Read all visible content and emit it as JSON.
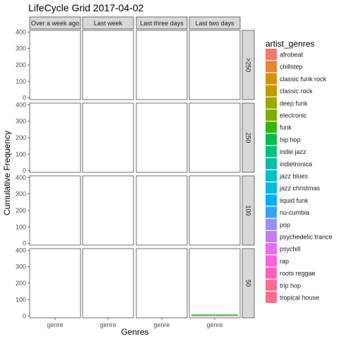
{
  "chart_data": {
    "type": "bar",
    "title": "LifeCycle Grid 2017-04-02",
    "xlabel": "Genres",
    "ylabel": "Cumulative Frequency",
    "x_tick_label": "genre",
    "ylim": [
      -10,
      410
    ],
    "y_ticks": [
      0,
      100,
      200,
      300,
      400
    ],
    "grid": false,
    "column_facets": [
      "Over a week ago",
      "Last week",
      "Last three days",
      "Last two days"
    ],
    "row_facets": [
      ">250",
      "250",
      "100",
      "50"
    ],
    "legend": {
      "title": "artist_genres",
      "placement": "right",
      "entries": [
        {
          "name": "afrobeat",
          "color": "#F8766D"
        },
        {
          "name": "chillstep",
          "color": "#EA8331"
        },
        {
          "name": "classic funk rock",
          "color": "#D89000"
        },
        {
          "name": "classic rock",
          "color": "#C09B00"
        },
        {
          "name": "deep funk",
          "color": "#A3A500"
        },
        {
          "name": "electronic",
          "color": "#7CAE00"
        },
        {
          "name": "funk",
          "color": "#39B600"
        },
        {
          "name": "hip hop",
          "color": "#00BB4E"
        },
        {
          "name": "indie jazz",
          "color": "#00BF7D"
        },
        {
          "name": "indietronica",
          "color": "#00C1A3"
        },
        {
          "name": "jazz blues",
          "color": "#00BFC4"
        },
        {
          "name": "jazz christmas",
          "color": "#00BAE0"
        },
        {
          "name": "liquid funk",
          "color": "#00B0F6"
        },
        {
          "name": "nu-cumbia",
          "color": "#35A2FF"
        },
        {
          "name": "pop",
          "color": "#9590FF"
        },
        {
          "name": "psychedelic trance",
          "color": "#C77CFF"
        },
        {
          "name": "psychill",
          "color": "#E76BF3"
        },
        {
          "name": "rap",
          "color": "#FA62DB"
        },
        {
          "name": "roots reggae",
          "color": "#FF62BC"
        },
        {
          "name": "trip hop",
          "color": "#FF6C90"
        },
        {
          "name": "tropical house",
          "color": "#FF6C90"
        }
      ]
    },
    "stack_cells": [
      {
        "row": "50",
        "col": "Last two days",
        "stack": [
          {
            "genre": "afrobeat",
            "value": 1
          },
          {
            "genre": "chillstep",
            "value": 1
          },
          {
            "genre": "classic funk rock",
            "value": 1
          },
          {
            "genre": "classic rock",
            "value": 1
          },
          {
            "genre": "deep funk",
            "value": 1
          },
          {
            "genre": "electronic",
            "value": 1
          },
          {
            "genre": "funk",
            "value": 1
          },
          {
            "genre": "hip hop",
            "value": 1
          },
          {
            "genre": "indie jazz",
            "value": 1
          },
          {
            "genre": "indietronica",
            "value": 1
          },
          {
            "genre": "jazz blues",
            "value": 1
          }
        ]
      }
    ]
  }
}
